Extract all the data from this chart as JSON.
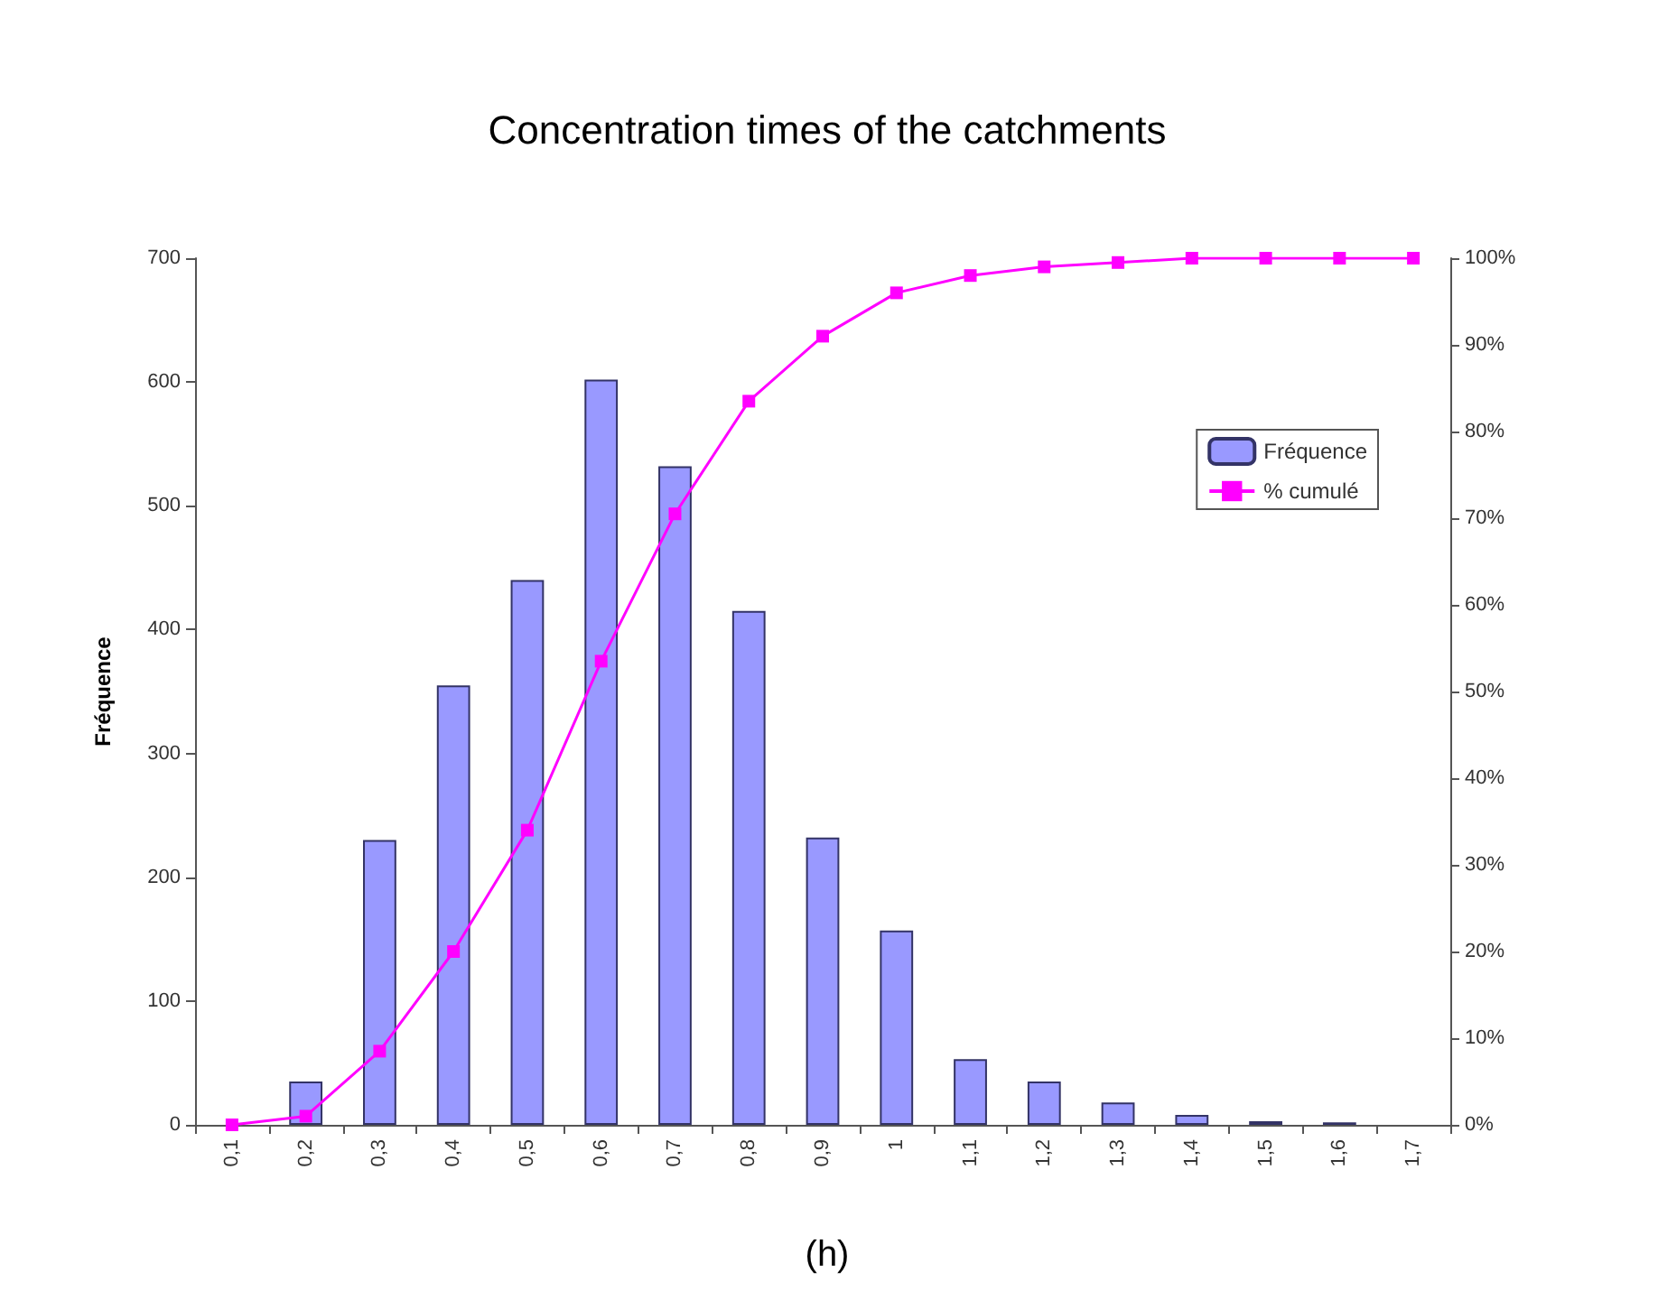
{
  "chart_data": {
    "type": "bar",
    "title": "Concentration times of the catchments",
    "ylabel": "Fréquence",
    "categories": [
      "0,1",
      "0,2",
      "0,3",
      "0,4",
      "0,5",
      "0,6",
      "0,7",
      "0,8",
      "0,9",
      "1",
      "1,1",
      "1,2",
      "1,3",
      "1,4",
      "1,5",
      "1,6",
      "1,7"
    ],
    "series": [
      {
        "name": "Fréquence",
        "color": "#9999ff",
        "values": [
          0,
          35,
          230,
          355,
          440,
          602,
          532,
          415,
          232,
          157,
          53,
          35,
          18,
          8,
          3,
          2,
          0
        ]
      },
      {
        "name": "% cumulé",
        "type": "line",
        "axis": "y2",
        "color": "#ff00ff",
        "marker": "square",
        "values": [
          0,
          1,
          8.5,
          20,
          34,
          53.5,
          70.5,
          83.5,
          91,
          96,
          98,
          99,
          99.5,
          100,
          100,
          100,
          100
        ]
      }
    ],
    "ylim": [
      0,
      700
    ],
    "yticks": [
      0,
      100,
      200,
      300,
      400,
      500,
      600,
      700
    ],
    "y2lim": [
      0,
      100
    ],
    "y2ticks": [
      {
        "value": 0,
        "label": "0%"
      },
      {
        "value": 10,
        "label": "10%"
      },
      {
        "value": 20,
        "label": "20%"
      },
      {
        "value": 30,
        "label": "30%"
      },
      {
        "value": 40,
        "label": "40%"
      },
      {
        "value": 50,
        "label": "50%"
      },
      {
        "value": 60,
        "label": "60%"
      },
      {
        "value": 70,
        "label": "70%"
      },
      {
        "value": 80,
        "label": "80%"
      },
      {
        "value": 90,
        "label": "90%"
      },
      {
        "value": 100,
        "label": "100%"
      }
    ],
    "annotations": [
      "(h)"
    ],
    "legend": "top right",
    "grid": false
  }
}
